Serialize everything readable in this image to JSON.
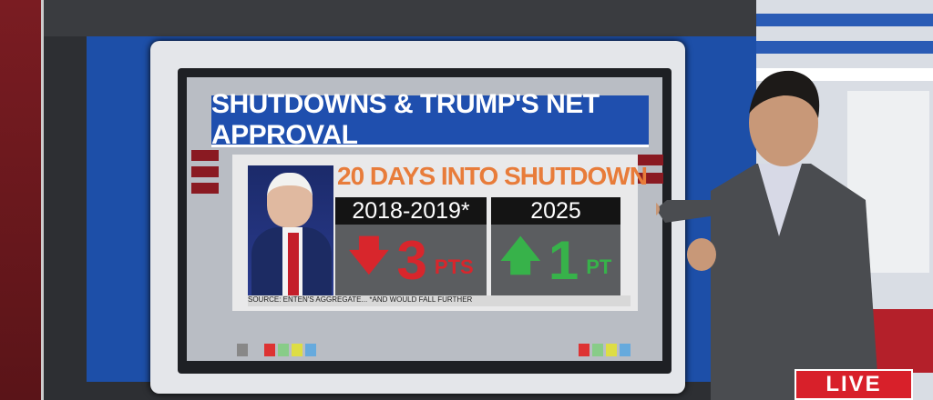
{
  "screen": {
    "title": "SHUTDOWNS & TRUMP'S NET APPROVAL",
    "headline": "20 DAYS INTO SHUTDOWN",
    "comparisons": [
      {
        "period": "2018-2019*",
        "direction": "down",
        "value": "3",
        "unit": "PTS",
        "color": "#d8262c"
      },
      {
        "period": "2025",
        "direction": "up",
        "value": "1",
        "unit": "PT",
        "color": "#37b24a"
      }
    ],
    "source": "SOURCE: ENTEN'S AGGREGATE... *AND WOULD FALL FURTHER"
  },
  "broadcast": {
    "live_label": "LIVE",
    "live_color": "#d8202a"
  },
  "colors": {
    "title_bg": "#1f4fae",
    "headline": "#e87c3a"
  }
}
